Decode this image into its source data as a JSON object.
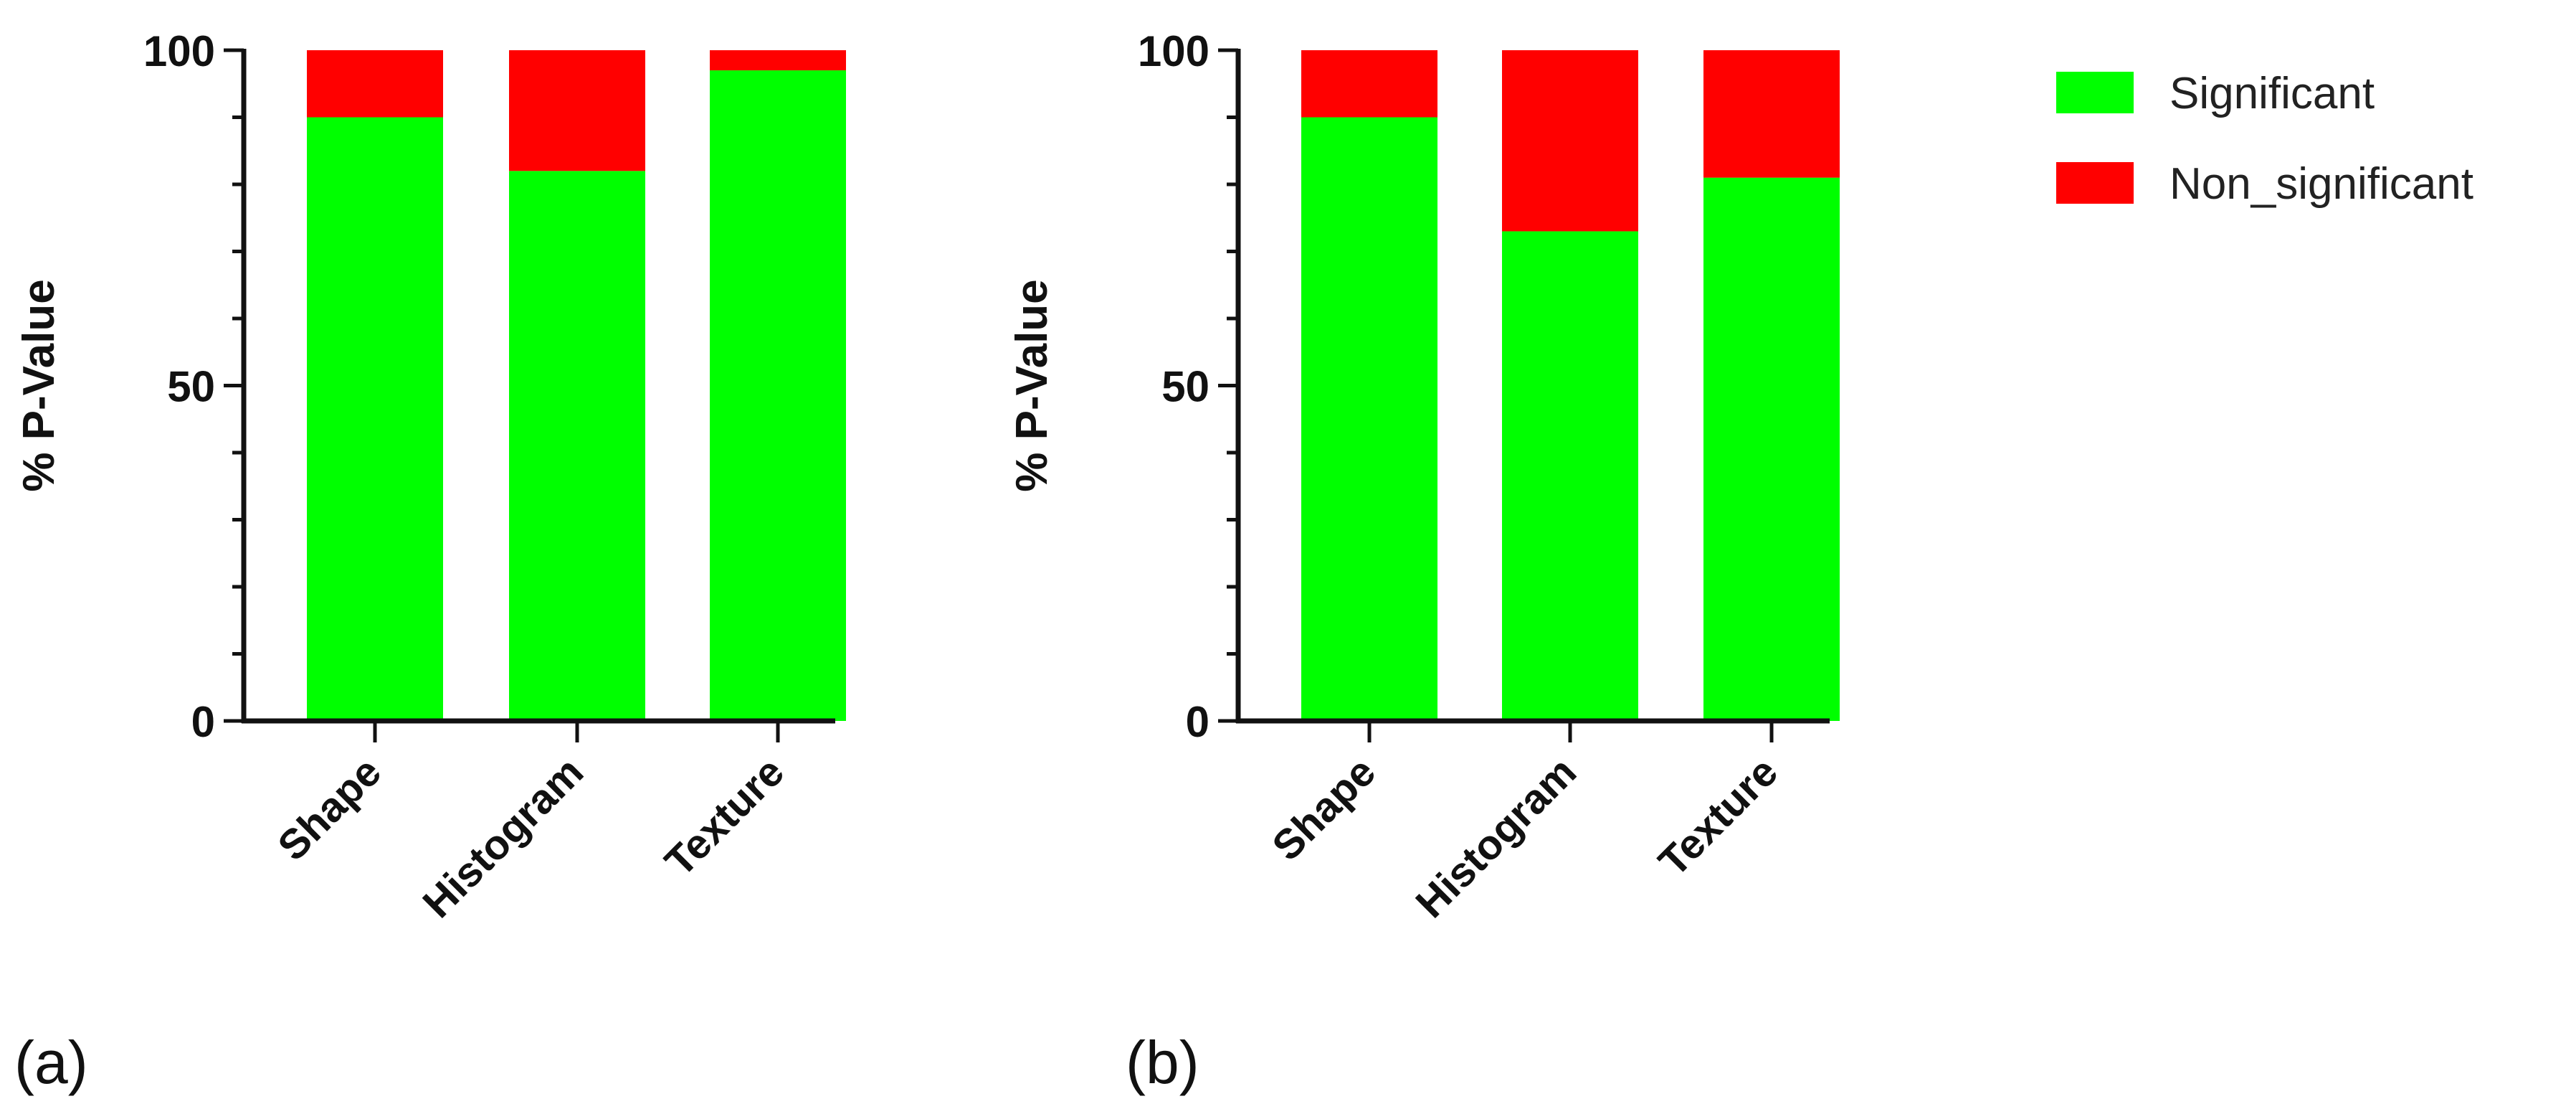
{
  "legend": {
    "items": [
      {
        "label": "Significant",
        "color": "#00FF00"
      },
      {
        "label": "Non_significant",
        "color": "#FF0000"
      }
    ]
  },
  "chart_data": [
    {
      "type": "bar",
      "stacked": true,
      "panel_label": "(a)",
      "categories": [
        "Shape",
        "Histogram",
        "Texture"
      ],
      "series": [
        {
          "name": "Significant",
          "values": [
            90,
            82,
            97
          ]
        },
        {
          "name": "Non_significant",
          "values": [
            10,
            18,
            3
          ]
        }
      ],
      "ylabel": "% P-Value",
      "xlabel": "",
      "ylim": [
        0,
        100
      ],
      "yticks": [
        0,
        50,
        100
      ],
      "grid": false
    },
    {
      "type": "bar",
      "stacked": true,
      "panel_label": "(b)",
      "categories": [
        "Shape",
        "Histogram",
        "Texture"
      ],
      "series": [
        {
          "name": "Significant",
          "values": [
            90,
            73,
            81
          ]
        },
        {
          "name": "Non_significant",
          "values": [
            10,
            27,
            19
          ]
        }
      ],
      "ylabel": "% P-Value",
      "xlabel": "",
      "ylim": [
        0,
        100
      ],
      "yticks": [
        0,
        50,
        100
      ],
      "grid": false
    }
  ]
}
